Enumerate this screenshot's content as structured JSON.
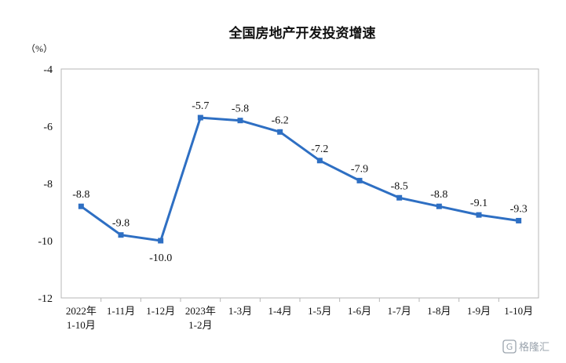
{
  "chart_data": {
    "type": "line",
    "title": "全国房地产开发投资增速",
    "unit": "（%）",
    "categories": [
      [
        "2022年",
        "1-10月"
      ],
      [
        "1-11月"
      ],
      [
        "1-12月"
      ],
      [
        "2023年",
        "1-2月"
      ],
      [
        "1-3月"
      ],
      [
        "1-4月"
      ],
      [
        "1-5月"
      ],
      [
        "1-6月"
      ],
      [
        "1-7月"
      ],
      [
        "1-8月"
      ],
      [
        "1-9月"
      ],
      [
        "1-10月"
      ]
    ],
    "series": [
      {
        "values": [
          -8.8,
          -9.8,
          -10.0,
          -5.7,
          -5.8,
          -6.2,
          -7.2,
          -7.9,
          -8.5,
          -8.8,
          -9.1,
          -9.3
        ],
        "labels": [
          "-8.8",
          "-9.8",
          "-10.0",
          "-5.7",
          "-5.8",
          "-6.2",
          "-7.2",
          "-7.9",
          "-8.5",
          "-8.8",
          "-9.1",
          "-9.3"
        ],
        "color": "#2e6fc3"
      }
    ],
    "ylim": [
      -12,
      -4
    ],
    "yticks": [
      -4,
      -6,
      -8,
      -10,
      -12
    ],
    "grid": false,
    "legend": "none"
  },
  "watermark": "格隆汇"
}
